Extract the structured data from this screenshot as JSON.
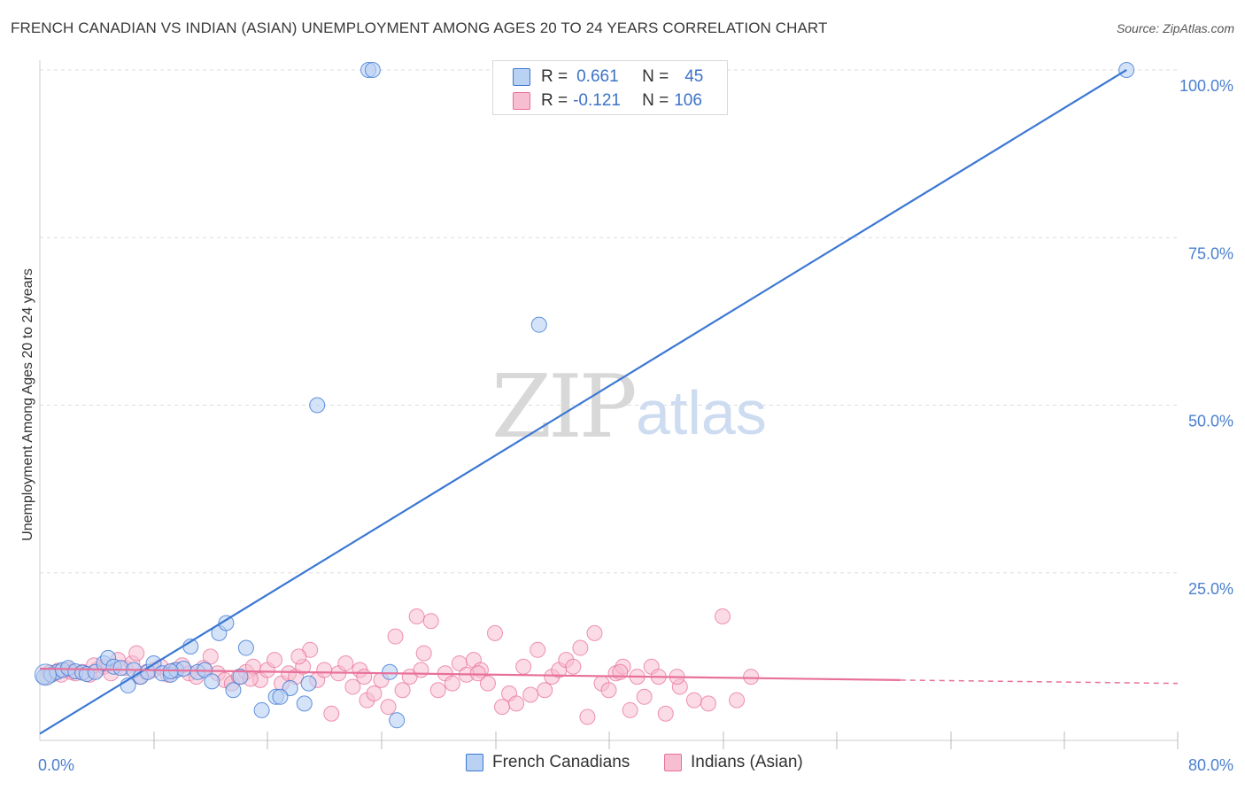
{
  "title": "FRENCH CANADIAN VS INDIAN (ASIAN) UNEMPLOYMENT AMONG AGES 20 TO 24 YEARS CORRELATION CHART",
  "source": "Source: ZipAtlas.com",
  "watermark": {
    "zip": "ZIP",
    "atlas": "atlas"
  },
  "colors": {
    "blue": "#3b78d4",
    "blue_fill": "#b9d1f3",
    "pink": "#e8709a",
    "pink_fill": "#f7bdd0",
    "grid": "#dddddd",
    "axis_text": "#4a7fcf"
  },
  "legend": [
    {
      "r_label": "R =",
      "r_value": "0.661",
      "n_label": "N =",
      "n_value": "45"
    },
    {
      "r_label": "R =",
      "r_value": "-0.121",
      "n_label": "N =",
      "n_value": "106"
    }
  ],
  "bottom_legend": [
    "French Canadians",
    "Indians (Asian)"
  ],
  "chart_data": {
    "type": "scatter",
    "title": "FRENCH CANADIAN VS INDIAN (ASIAN) UNEMPLOYMENT AMONG AGES 20 TO 24 YEARS CORRELATION CHART",
    "xlabel": "",
    "ylabel": "Unemployment Among Ages 20 to 24 years",
    "xlim": [
      0,
      80
    ],
    "ylim": [
      0,
      100
    ],
    "x_tick_labels": [
      "0.0%",
      "80.0%"
    ],
    "y_ticks": [
      25,
      50,
      75,
      100
    ],
    "y_tick_labels": [
      "25.0%",
      "50.0%",
      "75.0%",
      "100.0%"
    ],
    "series": [
      {
        "name": "French Canadians",
        "trend": {
          "x": [
            0,
            76.4
          ],
          "y": [
            1.0,
            100.0
          ]
        },
        "points": [
          [
            0.3,
            9.5
          ],
          [
            0.8,
            9.8
          ],
          [
            1.2,
            10.2
          ],
          [
            1.6,
            10.5
          ],
          [
            2.0,
            10.8
          ],
          [
            2.5,
            10.3
          ],
          [
            3.0,
            10.1
          ],
          [
            3.3,
            9.9
          ],
          [
            3.9,
            10.2
          ],
          [
            4.5,
            11.5
          ],
          [
            4.8,
            12.3
          ],
          [
            5.2,
            11.0
          ],
          [
            5.7,
            10.8
          ],
          [
            6.2,
            8.2
          ],
          [
            6.6,
            10.5
          ],
          [
            7.1,
            9.5
          ],
          [
            7.6,
            10.2
          ],
          [
            8.0,
            11.5
          ],
          [
            8.6,
            10.0
          ],
          [
            9.2,
            9.8
          ],
          [
            9.6,
            10.5
          ],
          [
            10.1,
            10.7
          ],
          [
            10.6,
            14.0
          ],
          [
            11.1,
            10.2
          ],
          [
            11.6,
            10.5
          ],
          [
            12.1,
            8.8
          ],
          [
            12.6,
            16.0
          ],
          [
            13.1,
            17.5
          ],
          [
            13.6,
            7.5
          ],
          [
            14.1,
            9.5
          ],
          [
            14.5,
            13.8
          ],
          [
            15.6,
            4.5
          ],
          [
            16.6,
            6.5
          ],
          [
            17.6,
            7.8
          ],
          [
            18.6,
            5.5
          ],
          [
            18.9,
            8.5
          ],
          [
            19.5,
            50.0
          ],
          [
            23.1,
            100.0
          ],
          [
            23.4,
            100.0
          ],
          [
            24.6,
            10.2
          ],
          [
            25.1,
            3.0
          ],
          [
            35.1,
            62.0
          ],
          [
            76.4,
            100.0
          ],
          [
            16.9,
            6.5
          ],
          [
            9.2,
            10.3
          ]
        ]
      },
      {
        "name": "Indians (Asian)",
        "trend": {
          "x": [
            0,
            60.5
          ],
          "y": [
            10.7,
            9.0
          ]
        },
        "trend_dashed": {
          "x": [
            60.5,
            80
          ],
          "y": [
            9.0,
            8.5
          ]
        },
        "points": [
          [
            0.5,
            9.5
          ],
          [
            1.0,
            10.0
          ],
          [
            1.5,
            9.8
          ],
          [
            2.0,
            10.5
          ],
          [
            2.5,
            10.0
          ],
          [
            3.0,
            10.2
          ],
          [
            3.5,
            9.8
          ],
          [
            4.0,
            10.5
          ],
          [
            4.5,
            11.0
          ],
          [
            5.0,
            10.0
          ],
          [
            5.5,
            12.0
          ],
          [
            6.0,
            10.8
          ],
          [
            6.5,
            11.5
          ],
          [
            7.0,
            9.5
          ],
          [
            7.5,
            10.2
          ],
          [
            8.0,
            10.5
          ],
          [
            8.5,
            11.0
          ],
          [
            9.0,
            9.8
          ],
          [
            9.5,
            10.5
          ],
          [
            10.0,
            11.2
          ],
          [
            10.5,
            10.0
          ],
          [
            11.0,
            9.5
          ],
          [
            11.5,
            10.8
          ],
          [
            12.0,
            12.5
          ],
          [
            12.5,
            10.0
          ],
          [
            13.0,
            9.0
          ],
          [
            13.5,
            8.5
          ],
          [
            14.0,
            9.5
          ],
          [
            14.5,
            10.2
          ],
          [
            15.0,
            11.0
          ],
          [
            15.5,
            9.0
          ],
          [
            16.0,
            10.5
          ],
          [
            16.5,
            12.0
          ],
          [
            17.0,
            8.5
          ],
          [
            17.5,
            10.0
          ],
          [
            18.0,
            9.5
          ],
          [
            18.5,
            11.0
          ],
          [
            19.0,
            13.5
          ],
          [
            19.5,
            9.0
          ],
          [
            20.0,
            10.5
          ],
          [
            20.5,
            4.0
          ],
          [
            21.0,
            10.0
          ],
          [
            21.5,
            11.5
          ],
          [
            22.0,
            8.0
          ],
          [
            22.5,
            10.5
          ],
          [
            23.0,
            6.0
          ],
          [
            23.5,
            7.0
          ],
          [
            24.0,
            9.0
          ],
          [
            24.5,
            5.0
          ],
          [
            25.0,
            15.5
          ],
          [
            25.5,
            7.5
          ],
          [
            26.0,
            9.5
          ],
          [
            26.5,
            18.5
          ],
          [
            27.0,
            13.0
          ],
          [
            27.5,
            17.8
          ],
          [
            28.0,
            7.5
          ],
          [
            28.5,
            10.0
          ],
          [
            29.0,
            8.5
          ],
          [
            29.5,
            11.5
          ],
          [
            30.0,
            9.8
          ],
          [
            30.5,
            12.0
          ],
          [
            31.0,
            10.5
          ],
          [
            31.5,
            8.5
          ],
          [
            32.0,
            16.0
          ],
          [
            32.5,
            5.0
          ],
          [
            33.0,
            7.0
          ],
          [
            33.5,
            5.5
          ],
          [
            34.0,
            11.0
          ],
          [
            34.5,
            6.8
          ],
          [
            35.0,
            13.5
          ],
          [
            35.5,
            7.5
          ],
          [
            36.0,
            9.5
          ],
          [
            36.5,
            10.5
          ],
          [
            37.0,
            12.0
          ],
          [
            37.5,
            11.0
          ],
          [
            38.0,
            13.8
          ],
          [
            38.5,
            3.5
          ],
          [
            39.0,
            16.0
          ],
          [
            39.5,
            8.5
          ],
          [
            40.0,
            7.5
          ],
          [
            40.5,
            10.0
          ],
          [
            41.0,
            11.0
          ],
          [
            41.5,
            4.5
          ],
          [
            42.0,
            9.5
          ],
          [
            42.5,
            6.5
          ],
          [
            43.0,
            11.0
          ],
          [
            43.5,
            9.5
          ],
          [
            44.0,
            4.0
          ],
          [
            45.0,
            8.0
          ],
          [
            46.0,
            6.0
          ],
          [
            47.0,
            5.5
          ],
          [
            48.0,
            18.5
          ],
          [
            49.0,
            6.0
          ],
          [
            50.0,
            9.5
          ],
          [
            2.2,
            10.2
          ],
          [
            3.8,
            11.2
          ],
          [
            6.8,
            13.0
          ],
          [
            14.8,
            9.2
          ],
          [
            18.2,
            12.5
          ],
          [
            22.8,
            9.5
          ],
          [
            26.8,
            10.5
          ],
          [
            30.8,
            10.0
          ],
          [
            40.8,
            10.2
          ],
          [
            44.8,
            9.5
          ],
          [
            1.3,
            10.4
          ],
          [
            0.7,
            10.1
          ]
        ]
      }
    ]
  }
}
